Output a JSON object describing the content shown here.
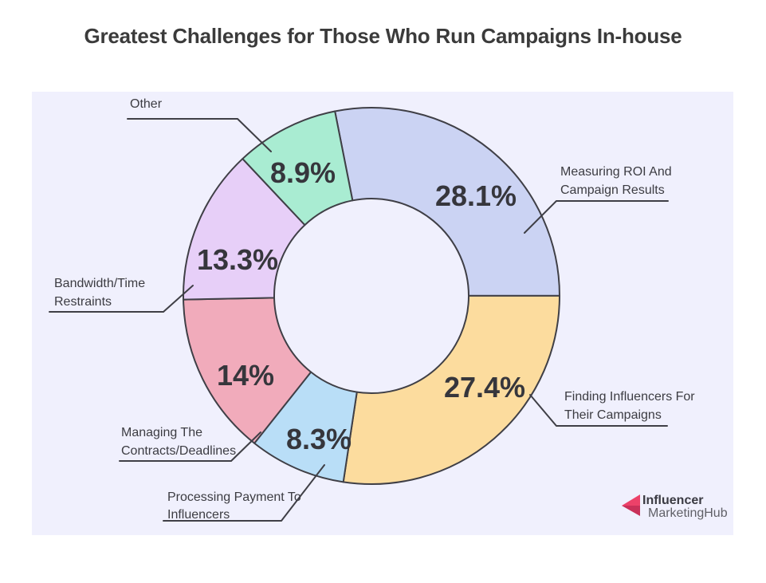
{
  "title": "Greatest Challenges for Those Who Run Campaigns In-house",
  "chart_data": {
    "type": "pie",
    "subtype": "donut",
    "title": "Greatest Challenges for Those Who Run Campaigns In-house",
    "units": "%",
    "total": 100,
    "direction": "clockwise",
    "start_angle_deg": 101.2,
    "legend_position": "callout-labels",
    "segments": [
      {
        "label": "Measuring ROI And Campaign Results",
        "label_lines": [
          "Measuring ROI And",
          "Campaign Results"
        ],
        "value": 28.1,
        "value_label": "28.1%",
        "color": "#cbd3f3"
      },
      {
        "label": "Finding Influencers For Their Campaigns",
        "label_lines": [
          "Finding Influencers For",
          "Their Campaigns"
        ],
        "value": 27.4,
        "value_label": "27.4%",
        "color": "#fcdc9e"
      },
      {
        "label": "Processing Payment To Influencers",
        "label_lines": [
          "Processing Payment To",
          "Influencers"
        ],
        "value": 8.3,
        "value_label": "8.3%",
        "color": "#b9def7"
      },
      {
        "label": "Managing The Contracts/Deadlines",
        "label_lines": [
          "Managing The",
          "Contracts/Deadlines"
        ],
        "value": 14,
        "value_label": "14%",
        "color": "#f1abbb"
      },
      {
        "label": "Bandwidth/Time Restraints",
        "label_lines": [
          "Bandwidth/Time",
          "Restraints"
        ],
        "value": 13.3,
        "value_label": "13.3%",
        "color": "#e7cff8"
      },
      {
        "label": "Other",
        "label_lines": [
          "Other"
        ],
        "value": 8.9,
        "value_label": "8.9%",
        "color": "#a9ecd2"
      }
    ]
  },
  "colors": {
    "panel_bg": "#f0f0fd",
    "outline": "#3f3f46",
    "title_text": "#3b3b3b",
    "percent_text": "#36363c",
    "label_text": "#3c3c42",
    "logo_pink_light": "#ec4169",
    "logo_pink_dark": "#c93059",
    "logo_text_dark": "#3a3a42",
    "logo_text_gray": "#606067"
  },
  "brand": {
    "line1": "Influencer",
    "line2": "MarketingHub"
  }
}
